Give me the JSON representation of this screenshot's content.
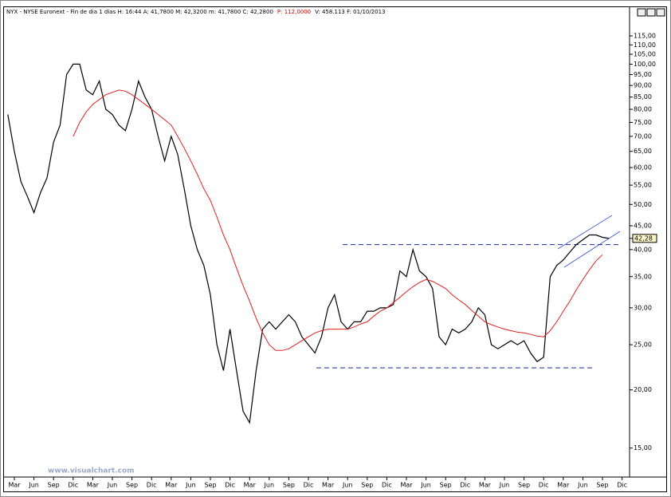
{
  "chart_data": {
    "type": "line",
    "title": "NYX - NYSE Euronext - Fin de dia 1 dias  H: 16:44  A: 41,7800  M: 42,3200  m: 41,7800  C: 42,2800",
    "title_highlight": "P: 112,0000",
    "title_tail": "V: 458.113  F: 01/10/2013",
    "watermark": "www.visualchart.com",
    "log_scale": true,
    "grid": false,
    "categories": [
      null,
      null,
      "Mar",
      null,
      null,
      "Jun",
      null,
      null,
      "Sep",
      null,
      null,
      "Dic",
      null,
      null,
      "Mar",
      null,
      null,
      "Jun",
      null,
      null,
      "Sep",
      null,
      null,
      "Dic",
      null,
      null,
      "Mar",
      null,
      null,
      "Jun",
      null,
      null,
      "Sep",
      null,
      null,
      "Dic",
      null,
      null,
      "Mar",
      null,
      null,
      "Jun",
      null,
      null,
      "Sep",
      null,
      null,
      "Dic",
      null,
      null,
      "Mar",
      null,
      null,
      "Jun",
      null,
      null,
      "Sep",
      null,
      null,
      "Dic",
      null,
      null,
      "Mar",
      null,
      null,
      "Jun",
      null,
      null,
      "Sep",
      null,
      null,
      "Dic",
      null,
      null,
      "Mar",
      null,
      null,
      "Jun",
      null,
      null,
      "Sep",
      null,
      null,
      "Dic",
      null,
      null,
      "Mar",
      null,
      null,
      "Jun",
      null,
      null,
      "Sep",
      null,
      null,
      "Dic"
    ],
    "series": [
      {
        "name": "NYX",
        "color": "#000000",
        "values": [
          null,
          78,
          65,
          56,
          52,
          48,
          53,
          57,
          68,
          74,
          95,
          100,
          100,
          88,
          86,
          92,
          80,
          78,
          74,
          72,
          80,
          92,
          85,
          80,
          70,
          62,
          70,
          64,
          54,
          45,
          40,
          37,
          32,
          25,
          22,
          27,
          22,
          18,
          17,
          22,
          27,
          28,
          27,
          28,
          29,
          28,
          26,
          25,
          24,
          26,
          30,
          32,
          28,
          27,
          28,
          28,
          29.5,
          29.5,
          30,
          30,
          30.5,
          36,
          35,
          40,
          36,
          35,
          33,
          26,
          25,
          27,
          26.5,
          27,
          28,
          30,
          29,
          25,
          24.5,
          25,
          25.5,
          25,
          25.5,
          24,
          23,
          23.5,
          35,
          37,
          38,
          39.5,
          41,
          42,
          43,
          43,
          42.5,
          42.28,
          null,
          null
        ]
      },
      {
        "name": "Media",
        "color": "#e02020",
        "values": [
          null,
          null,
          null,
          null,
          null,
          null,
          null,
          null,
          null,
          null,
          null,
          70,
          75,
          79,
          82,
          84,
          86,
          87,
          88,
          87.5,
          86,
          84,
          82,
          80,
          78,
          76,
          74,
          70,
          66,
          62,
          58,
          54,
          51,
          47,
          43,
          40,
          36.5,
          33.5,
          31,
          28.5,
          26.5,
          25,
          24.3,
          24.3,
          24.5,
          25,
          25.5,
          26,
          26.5,
          26.8,
          27,
          27,
          27,
          27,
          27.3,
          27.7,
          28,
          28.8,
          29.5,
          30,
          30.8,
          31.6,
          32.5,
          33.3,
          34,
          34.5,
          34.2,
          33.6,
          33,
          32,
          31.2,
          30.5,
          29.6,
          28.8,
          28,
          27.6,
          27.3,
          27,
          26.8,
          26.6,
          26.5,
          26.3,
          26.1,
          26,
          26.8,
          28,
          29.5,
          31,
          32.8,
          34.5,
          36.2,
          37.8,
          39,
          null,
          null,
          null
        ]
      }
    ],
    "last_price": {
      "value": 42.28,
      "label": "42,28"
    },
    "reference_lines": [
      41,
      22.3
    ],
    "reference_color": "#1a2a9a",
    "ylim": [
      13,
      132
    ],
    "yticks": [
      {
        "value": 15,
        "label": "15,00"
      },
      {
        "value": 20,
        "label": "20,00"
      },
      {
        "value": 25,
        "label": "25,00"
      },
      {
        "value": 30,
        "label": "30,00"
      },
      {
        "value": 35,
        "label": "35,00"
      },
      {
        "value": 40,
        "label": "40,00"
      },
      {
        "value": 45,
        "label": "45,00"
      },
      {
        "value": 50,
        "label": "50,00"
      },
      {
        "value": 55,
        "label": "55,00"
      },
      {
        "value": 60,
        "label": "60,00"
      },
      {
        "value": 65,
        "label": "65,00"
      },
      {
        "value": 70,
        "label": "70,00"
      },
      {
        "value": 75,
        "label": "75,00"
      },
      {
        "value": 80,
        "label": "80,00"
      },
      {
        "value": 85,
        "label": "85,00"
      },
      {
        "value": 90,
        "label": "90,00"
      },
      {
        "value": 95,
        "label": "95,00"
      },
      {
        "value": 100,
        "label": "100,00"
      },
      {
        "value": 105,
        "label": "105,00"
      },
      {
        "value": 110,
        "label": "110,00"
      },
      {
        "value": 115,
        "label": "115,00"
      }
    ]
  }
}
